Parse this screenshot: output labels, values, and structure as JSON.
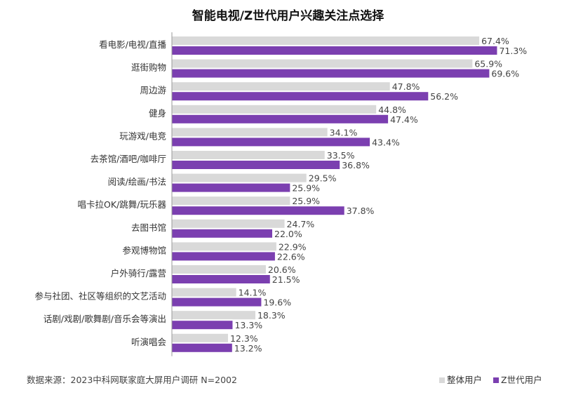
{
  "chart_data": {
    "type": "bar",
    "orientation": "horizontal",
    "title": "智能电视/Z世代用户兴趣关注点选择",
    "categories": [
      "看电影/电视/直播",
      "逛街购物",
      "周边游",
      "健身",
      "玩游戏/电竞",
      "去茶馆/酒吧/咖啡厅",
      "阅读/绘画/书法",
      "唱卡拉OK/跳舞/玩乐器",
      "去图书馆",
      "参观博物馆",
      "户外骑行/露营",
      "参与社团、社区等组织的文艺活动",
      "话剧/戏剧/歌舞剧/音乐会等演出",
      "听演唱会"
    ],
    "series": [
      {
        "name": "整体用户",
        "color": "#d9d9d9",
        "values": [
          67.4,
          65.9,
          47.8,
          44.8,
          34.1,
          33.5,
          29.5,
          25.9,
          24.7,
          22.9,
          20.6,
          14.1,
          18.3,
          12.3
        ],
        "labels": [
          "67.4%",
          "65.9%",
          "47.8%",
          "44.8%",
          "34.1%",
          "33.5%",
          "29.5%",
          "25.9%",
          "24.7%",
          "22.9%",
          "20.6%",
          "14.1%",
          "18.3%",
          "12.3%"
        ]
      },
      {
        "name": "Z世代用户",
        "color": "#7b3fb0",
        "values": [
          71.3,
          69.6,
          56.2,
          47.4,
          43.4,
          36.8,
          25.9,
          37.8,
          22.0,
          22.6,
          21.5,
          19.6,
          13.3,
          13.2
        ],
        "labels": [
          "71.3%",
          "69.6%",
          "56.2%",
          "47.4%",
          "43.4%",
          "36.8%",
          "25.9%",
          "37.8%",
          "22.0%",
          "22.6%",
          "21.5%",
          "19.6%",
          "13.3%",
          "13.2%"
        ]
      }
    ],
    "xlim": [
      0,
      100
    ],
    "grid": false,
    "legend": "bottom-right"
  },
  "footer": {
    "source": "数据来源：2023中科网联家庭大屏用户调研 N=2002"
  },
  "colors": {
    "axis": "#999999"
  }
}
